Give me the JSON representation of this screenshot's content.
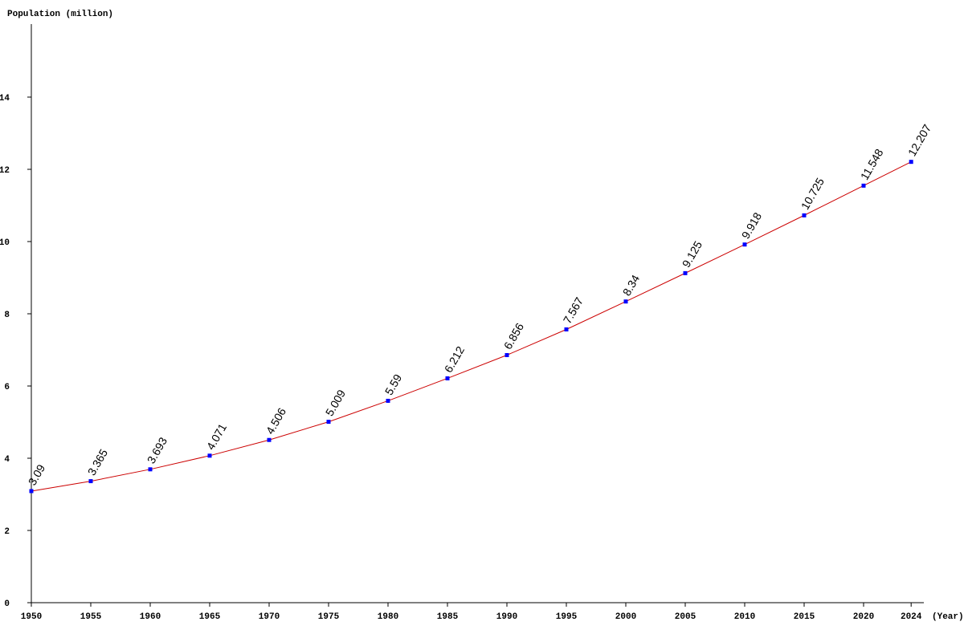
{
  "chart_data": {
    "type": "line",
    "y_label": "Population (million)",
    "x_label": "(Year)",
    "x": [
      1950,
      1955,
      1960,
      1965,
      1970,
      1975,
      1980,
      1985,
      1990,
      1995,
      2000,
      2005,
      2010,
      2015,
      2020,
      2024
    ],
    "series": [
      {
        "color": "#cc0000",
        "marker_color": "#0000ff",
        "values": [
          3.09,
          3.365,
          3.693,
          4.071,
          4.506,
          5.009,
          5.59,
          6.212,
          6.856,
          7.567,
          8.34,
          9.125,
          9.918,
          10.725,
          11.548,
          12.207
        ]
      }
    ],
    "xlim": [
      1950,
      2025
    ],
    "xticks": [
      1950,
      1955,
      1960,
      1965,
      1970,
      1975,
      1980,
      1985,
      1990,
      1995,
      2000,
      2005,
      2010,
      2015,
      2020,
      2024
    ],
    "ylim": [
      0,
      16
    ],
    "yticks": [
      0,
      2,
      4,
      6,
      8,
      10,
      12,
      14
    ],
    "grid": false
  }
}
